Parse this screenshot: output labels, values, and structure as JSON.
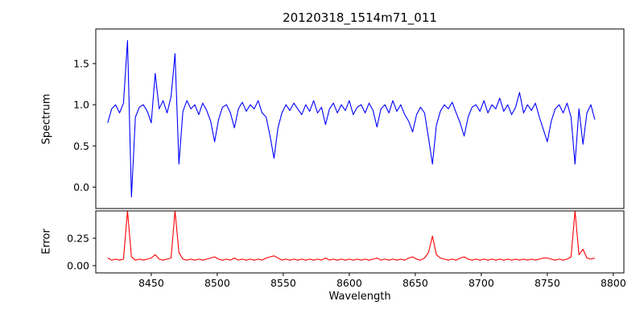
{
  "title": "20120318_1514m71_011",
  "xaxis": {
    "label": "Wavelength",
    "xlim": [
      8408,
      8808
    ],
    "tick_values": [
      8450,
      8500,
      8550,
      8600,
      8650,
      8700,
      8750,
      8800
    ],
    "tick_labels": [
      "8450",
      "8500",
      "8550",
      "8600",
      "8650",
      "8700",
      "8750",
      "8800"
    ]
  },
  "chart_data": [
    {
      "type": "line",
      "name": "spectrum",
      "ylabel": "Spectrum",
      "color": "#0000ff",
      "ylim": [
        -0.26,
        1.92
      ],
      "ytick_values": [
        0.0,
        0.5,
        1.0,
        1.5
      ],
      "ytick_labels": [
        "0.0",
        "0.5",
        "1.0",
        "1.5"
      ],
      "x_start": 8417,
      "x_step": 3,
      "values": [
        0.78,
        0.95,
        1.0,
        0.9,
        1.02,
        1.78,
        -0.12,
        0.85,
        0.97,
        1.0,
        0.92,
        0.78,
        1.38,
        0.95,
        1.05,
        0.9,
        1.1,
        1.62,
        0.28,
        0.92,
        1.05,
        0.95,
        1.0,
        0.88,
        1.02,
        0.93,
        0.8,
        0.55,
        0.82,
        0.97,
        1.0,
        0.9,
        0.72,
        0.95,
        1.03,
        0.92,
        1.0,
        0.95,
        1.05,
        0.9,
        0.85,
        0.62,
        0.35,
        0.72,
        0.9,
        1.0,
        0.93,
        1.02,
        0.95,
        0.88,
        1.0,
        0.92,
        1.05,
        0.9,
        0.97,
        0.76,
        0.95,
        1.02,
        0.9,
        1.0,
        0.93,
        1.05,
        0.88,
        0.97,
        1.0,
        0.9,
        1.02,
        0.93,
        0.73,
        0.95,
        1.0,
        0.9,
        1.05,
        0.92,
        1.0,
        0.88,
        0.8,
        0.67,
        0.88,
        0.97,
        0.9,
        0.6,
        0.28,
        0.75,
        0.92,
        1.0,
        0.95,
        1.03,
        0.9,
        0.78,
        0.62,
        0.85,
        0.97,
        1.0,
        0.92,
        1.05,
        0.9,
        1.0,
        0.95,
        1.08,
        0.92,
        1.0,
        0.88,
        0.97,
        1.15,
        0.9,
        1.0,
        0.93,
        1.02,
        0.85,
        0.7,
        0.55,
        0.8,
        0.95,
        1.0,
        0.9,
        1.02,
        0.85,
        0.28,
        0.95,
        0.52,
        0.9,
        1.0,
        0.82
      ]
    },
    {
      "type": "line",
      "name": "error",
      "ylabel": "Error",
      "color": "#ff0000",
      "ylim": [
        -0.066,
        0.5
      ],
      "ytick_values": [
        0.0,
        0.25
      ],
      "ytick_labels": [
        "0.00",
        "0.25"
      ],
      "x_start": 8417,
      "x_step": 3,
      "values": [
        0.07,
        0.05,
        0.06,
        0.05,
        0.06,
        0.5,
        0.08,
        0.05,
        0.06,
        0.05,
        0.06,
        0.07,
        0.1,
        0.06,
        0.05,
        0.06,
        0.07,
        0.5,
        0.12,
        0.06,
        0.05,
        0.06,
        0.05,
        0.06,
        0.05,
        0.06,
        0.07,
        0.08,
        0.06,
        0.05,
        0.06,
        0.05,
        0.07,
        0.05,
        0.06,
        0.05,
        0.06,
        0.05,
        0.06,
        0.05,
        0.07,
        0.08,
        0.09,
        0.07,
        0.05,
        0.06,
        0.05,
        0.06,
        0.05,
        0.06,
        0.05,
        0.06,
        0.05,
        0.06,
        0.05,
        0.07,
        0.05,
        0.06,
        0.05,
        0.06,
        0.05,
        0.06,
        0.05,
        0.06,
        0.05,
        0.06,
        0.05,
        0.06,
        0.07,
        0.05,
        0.06,
        0.05,
        0.06,
        0.05,
        0.06,
        0.05,
        0.07,
        0.08,
        0.06,
        0.05,
        0.07,
        0.12,
        0.27,
        0.1,
        0.07,
        0.06,
        0.05,
        0.06,
        0.05,
        0.07,
        0.08,
        0.06,
        0.05,
        0.06,
        0.05,
        0.06,
        0.05,
        0.06,
        0.05,
        0.06,
        0.05,
        0.06,
        0.05,
        0.06,
        0.05,
        0.06,
        0.05,
        0.06,
        0.05,
        0.06,
        0.07,
        0.07,
        0.06,
        0.05,
        0.06,
        0.05,
        0.06,
        0.08,
        0.5,
        0.1,
        0.15,
        0.07,
        0.06,
        0.07
      ]
    }
  ]
}
